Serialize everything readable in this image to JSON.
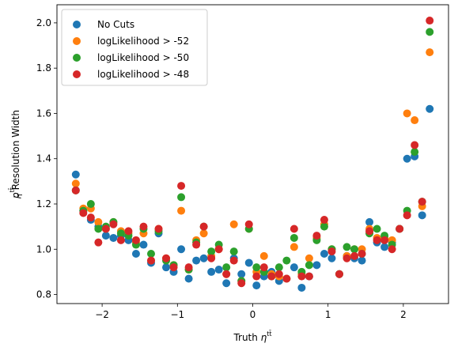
{
  "chart_data": {
    "type": "scatter",
    "xlabel": "Truth η^{t̄t}",
    "xlabel_main": "Truth ",
    "xlabel_sym": "η",
    "xlabel_sup": "tt̄",
    "ylabel": "p_T^{t̄t} Resolution Width",
    "ylabel_sym": "p",
    "ylabel_sub": "T",
    "ylabel_sup": "tt̄",
    "ylabel_main": " Resolution Width",
    "xlim": [
      -2.6,
      2.6
    ],
    "ylim": [
      0.76,
      2.08
    ],
    "xticks": [
      -2,
      -1,
      0,
      1,
      2
    ],
    "xtick_labels": [
      "−2",
      "−1",
      "0",
      "1",
      "2"
    ],
    "yticks": [
      0.8,
      1.0,
      1.2,
      1.4,
      1.6,
      1.8,
      2.0
    ],
    "ytick_labels": [
      "0.8",
      "1.0",
      "1.2",
      "1.4",
      "1.6",
      "1.8",
      "2.0"
    ],
    "legend_position": "top-left",
    "x": [
      -2.35,
      -2.25,
      -2.15,
      -2.05,
      -1.95,
      -1.85,
      -1.75,
      -1.65,
      -1.55,
      -1.45,
      -1.35,
      -1.25,
      -1.15,
      -1.05,
      -0.95,
      -0.85,
      -0.75,
      -0.65,
      -0.55,
      -0.45,
      -0.35,
      -0.25,
      -0.15,
      -0.05,
      0.05,
      0.15,
      0.25,
      0.35,
      0.45,
      0.55,
      0.65,
      0.75,
      0.85,
      0.95,
      1.05,
      1.15,
      1.25,
      1.35,
      1.45,
      1.55,
      1.65,
      1.75,
      1.85,
      1.95,
      2.05,
      2.15,
      2.25,
      2.35
    ],
    "series": [
      {
        "name": "No Cuts",
        "color": "#1f77b4",
        "values": [
          1.33,
          1.17,
          1.13,
          1.1,
          1.06,
          1.05,
          1.06,
          1.04,
          0.98,
          1.02,
          0.94,
          1.07,
          0.92,
          0.9,
          1.0,
          0.87,
          0.95,
          0.96,
          0.9,
          0.91,
          0.85,
          0.96,
          0.89,
          0.94,
          0.84,
          0.88,
          0.9,
          0.86,
          0.87,
          0.92,
          0.83,
          0.88,
          0.93,
          0.98,
          0.96,
          0.89,
          0.97,
          0.96,
          0.95,
          1.12,
          1.03,
          1.01,
          1.03,
          1.09,
          1.4,
          1.41,
          1.15,
          1.62
        ]
      },
      {
        "name": "logLikelihood > -52",
        "color": "#ff7f0e",
        "values": [
          1.29,
          1.18,
          1.18,
          1.12,
          1.09,
          1.12,
          1.08,
          1.07,
          1.03,
          1.07,
          0.95,
          1.09,
          0.96,
          0.93,
          1.17,
          0.91,
          1.04,
          1.07,
          0.97,
          1.0,
          0.89,
          1.11,
          0.86,
          1.09,
          0.9,
          0.97,
          0.89,
          0.88,
          0.87,
          1.01,
          0.89,
          0.96,
          1.05,
          1.11,
          1.0,
          0.89,
          0.97,
          1.0,
          1.0,
          1.09,
          1.05,
          1.05,
          1.04,
          1.09,
          1.6,
          1.57,
          1.19,
          1.87
        ]
      },
      {
        "name": "logLikelihood > -50",
        "color": "#2ca02c",
        "values": [
          1.26,
          1.17,
          1.2,
          1.09,
          1.1,
          1.12,
          1.07,
          1.06,
          1.02,
          1.09,
          0.98,
          1.08,
          0.95,
          0.93,
          1.23,
          0.91,
          1.03,
          1.1,
          0.99,
          1.02,
          0.92,
          0.99,
          0.86,
          1.09,
          0.92,
          0.9,
          0.88,
          0.92,
          0.95,
          1.05,
          0.9,
          0.93,
          1.04,
          1.1,
          1.0,
          0.89,
          1.01,
          1.0,
          0.98,
          1.07,
          1.09,
          1.06,
          1.02,
          1.09,
          1.17,
          1.43,
          1.21,
          1.96
        ]
      },
      {
        "name": "logLikelihood > -48",
        "color": "#d62728",
        "values": [
          1.26,
          1.16,
          1.14,
          1.03,
          1.09,
          1.11,
          1.04,
          1.08,
          1.04,
          1.1,
          0.95,
          1.09,
          0.96,
          0.92,
          1.28,
          0.92,
          1.02,
          1.1,
          0.96,
          1.0,
          0.89,
          0.95,
          0.85,
          1.11,
          0.88,
          0.92,
          0.88,
          0.89,
          0.87,
          1.09,
          0.88,
          0.88,
          1.06,
          1.13,
          0.99,
          0.89,
          0.96,
          0.97,
          0.98,
          1.08,
          1.04,
          1.04,
          1.0,
          1.09,
          1.15,
          1.46,
          1.21,
          2.01
        ]
      }
    ]
  }
}
